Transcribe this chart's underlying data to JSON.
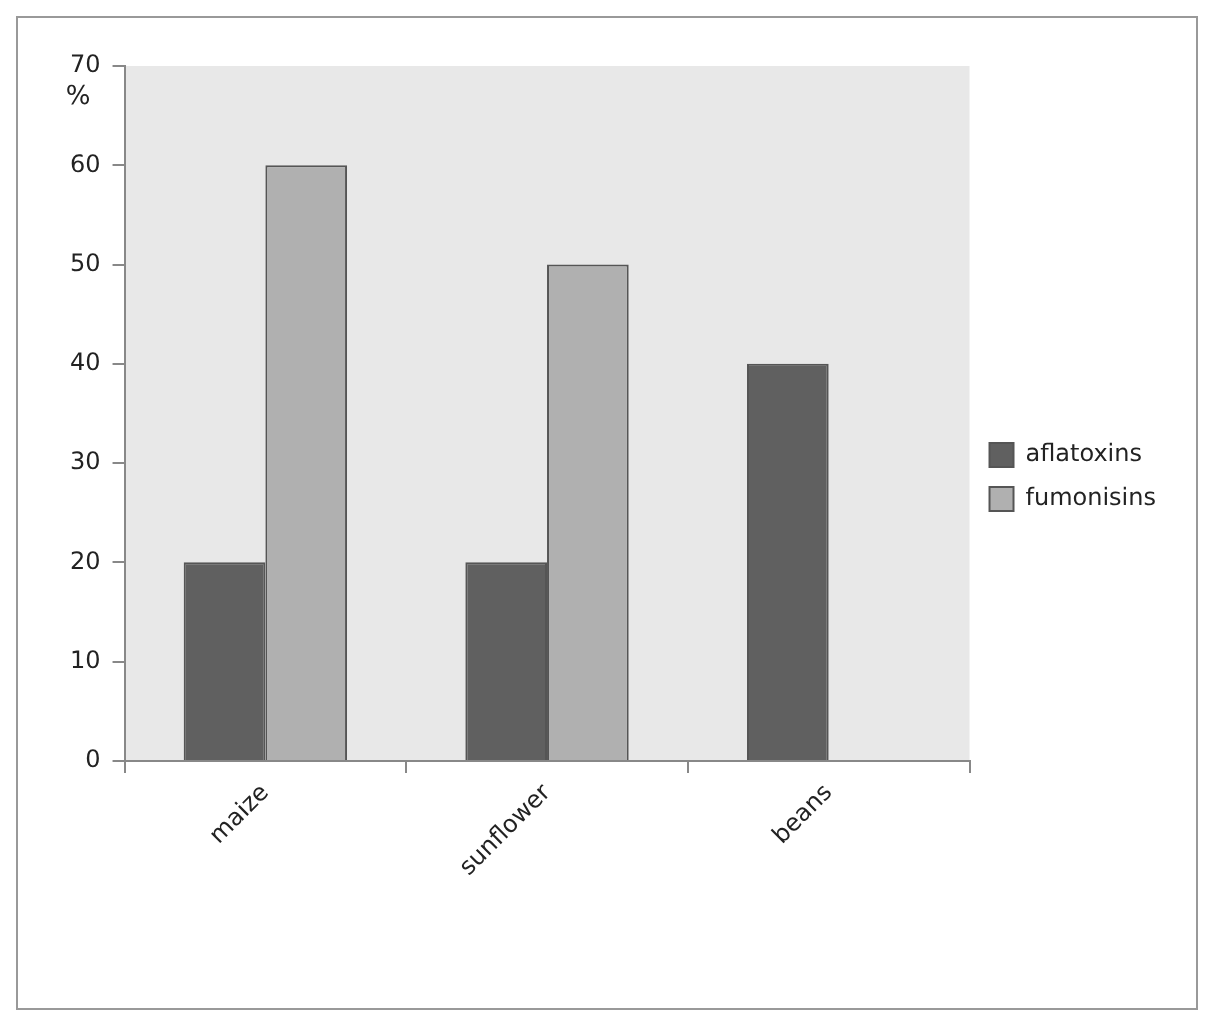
{
  "chart_data": {
    "type": "bar",
    "ylabel": "%",
    "categories": [
      "maize",
      "sunflower",
      "beans"
    ],
    "series": [
      {
        "name": "aflatoxins",
        "color": "#606060",
        "values": [
          20,
          20,
          40
        ]
      },
      {
        "name": "fumonisins",
        "color": "#b0b0b0",
        "values": [
          60,
          50,
          null
        ]
      }
    ],
    "ylim": [
      0,
      70
    ],
    "yticks": [
      0,
      10,
      20,
      30,
      40,
      50,
      60,
      70
    ],
    "grid": false,
    "legend": "right"
  }
}
